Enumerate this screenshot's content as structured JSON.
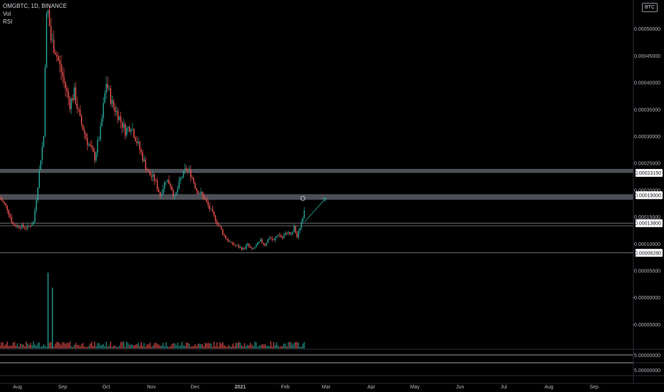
{
  "legend": {
    "symbol": "OMGBTC, 1D, BINANCE",
    "vol": "Vol",
    "rsi": "RSI"
  },
  "currency_badge": "BTC",
  "chart_data": {
    "type": "candlestick",
    "symbol": "OMGBTC",
    "interval": "1D",
    "exchange": "BINANCE",
    "x_ticks": [
      "Aug",
      "Sep",
      "Oct",
      "Nov",
      "Dec",
      "2021",
      "Feb",
      "Mar",
      "Apr",
      "May",
      "Jun",
      "Jul",
      "Aug",
      "Sep"
    ],
    "y_ticks": [
      "0.00050000",
      "0.00045000",
      "0.00040000",
      "0.00035000",
      "0.00030000",
      "0.00025000",
      "0.00020000",
      "0.00015000",
      "0.00010000",
      "0.00005000",
      "-0.00000000",
      "-0.00005000"
    ],
    "ylim": [
      -7e-05,
      0.00054
    ],
    "price_labels": [
      {
        "value": "0.00023150",
        "price": 0.0002315
      },
      {
        "value": "0.00019000",
        "price": 0.00019
      },
      {
        "value": "0.00013800",
        "price": 0.000138
      },
      {
        "value": "0.00008280",
        "price": 8.28e-05
      }
    ],
    "zones": [
      {
        "from": 0.0002315,
        "to": 0.000239
      },
      {
        "from": 0.0001815,
        "to": 0.000192
      }
    ],
    "reference_lines": [
      0.000138,
      0.000133,
      8.28e-05
    ],
    "price_path": [
      [
        "2020-07-20",
        0.000185
      ],
      [
        "2020-07-25",
        0.000165
      ],
      [
        "2020-07-29",
        0.000135
      ],
      [
        "2020-08-03",
        0.000132
      ],
      [
        "2020-08-08",
        0.00013
      ],
      [
        "2020-08-12",
        0.00014
      ],
      [
        "2020-08-14",
        0.000185
      ],
      [
        "2020-08-17",
        0.00026
      ],
      [
        "2020-08-19",
        0.0003
      ],
      [
        "2020-08-20",
        0.00044
      ],
      [
        "2020-08-21",
        0.00052
      ],
      [
        "2020-08-22",
        0.00053
      ],
      [
        "2020-08-24",
        0.00048
      ],
      [
        "2020-08-27",
        0.00046
      ],
      [
        "2020-08-31",
        0.00042
      ],
      [
        "2020-09-03",
        0.00039
      ],
      [
        "2020-09-06",
        0.00036
      ],
      [
        "2020-09-09",
        0.00038
      ],
      [
        "2020-09-13",
        0.00033
      ],
      [
        "2020-09-18",
        0.00029
      ],
      [
        "2020-09-23",
        0.00026
      ],
      [
        "2020-09-27",
        0.00031
      ],
      [
        "2020-10-01",
        0.0004
      ],
      [
        "2020-10-05",
        0.00036
      ],
      [
        "2020-10-09",
        0.00034
      ],
      [
        "2020-10-14",
        0.00031
      ],
      [
        "2020-10-18",
        0.00032
      ],
      [
        "2020-10-22",
        0.00029
      ],
      [
        "2020-10-26",
        0.00026
      ],
      [
        "2020-10-30",
        0.00023
      ],
      [
        "2020-11-03",
        0.00022
      ],
      [
        "2020-11-07",
        0.00019
      ],
      [
        "2020-11-11",
        0.00022
      ],
      [
        "2020-11-14",
        0.00021
      ],
      [
        "2020-11-17",
        0.000185
      ],
      [
        "2020-11-21",
        0.00022
      ],
      [
        "2020-11-25",
        0.00024
      ],
      [
        "2020-11-28",
        0.00023
      ],
      [
        "2020-12-02",
        0.0002
      ],
      [
        "2020-12-06",
        0.00019
      ],
      [
        "2020-12-10",
        0.00017
      ],
      [
        "2020-12-14",
        0.00015
      ],
      [
        "2020-12-18",
        0.00013
      ],
      [
        "2020-12-22",
        0.00011
      ],
      [
        "2020-12-26",
        0.0001
      ],
      [
        "2020-12-30",
        9.5e-05
      ],
      [
        "2021-01-03",
        9e-05
      ],
      [
        "2021-01-06",
        9.8e-05
      ],
      [
        "2021-01-09",
        8.8e-05
      ],
      [
        "2021-01-12",
        9.6e-05
      ],
      [
        "2021-01-15",
        0.000105
      ],
      [
        "2021-01-18",
        9.8e-05
      ],
      [
        "2021-01-21",
        0.000112
      ],
      [
        "2021-01-24",
        0.000105
      ],
      [
        "2021-01-27",
        0.000118
      ],
      [
        "2021-01-30",
        0.00011
      ],
      [
        "2021-02-02",
        0.000122
      ],
      [
        "2021-02-05",
        0.000115
      ],
      [
        "2021-02-07",
        0.00013
      ],
      [
        "2021-02-09",
        0.000112
      ],
      [
        "2021-02-11",
        0.00013
      ],
      [
        "2021-02-13",
        0.000152
      ],
      [
        "2021-02-14",
        0.000165
      ]
    ],
    "projection": {
      "from": [
        "2021-02-14",
        0.00014
      ],
      "to": [
        "2021-03-01",
        0.000185
      ]
    },
    "volume_spikes": [
      [
        "2020-08-22",
        4.6e-05
      ],
      [
        "2020-08-25",
        1.8e-05
      ]
    ],
    "lower_pane_ticks": [
      "5.00000000",
      "5.00000000"
    ],
    "colors": {
      "up": "#26a69a",
      "down": "#ef5350",
      "zone": "#5a5d66",
      "line": "#9598a1",
      "grid": "#1e222d",
      "projection": "#26a69a"
    }
  }
}
